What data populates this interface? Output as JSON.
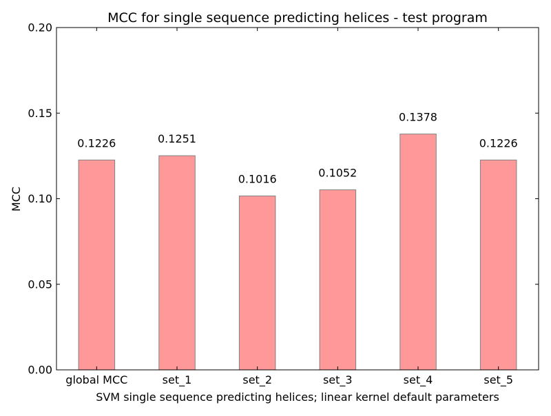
{
  "chart_data": {
    "type": "bar",
    "title": "MCC for single sequence predicting helices - test program",
    "xlabel": "SVM single sequence predicting helices; linear kernel default parameters",
    "ylabel": "MCC",
    "categories": [
      "global MCC",
      "set_1",
      "set_2",
      "set_3",
      "set_4",
      "set_5"
    ],
    "values": [
      0.1226,
      0.1251,
      0.1016,
      0.1052,
      0.1378,
      0.1226
    ],
    "value_labels": [
      "0.1226",
      "0.1251",
      "0.1016",
      "0.1052",
      "0.1378",
      "0.1226"
    ],
    "ylim": [
      0,
      0.2
    ],
    "yticks": [
      0.0,
      0.05,
      0.1,
      0.15,
      0.2
    ],
    "ytick_labels": [
      "0.00",
      "0.05",
      "0.10",
      "0.15",
      "0.20"
    ],
    "grid": false,
    "bar_color": "#ff9999",
    "bar_edge_color": "#808080"
  }
}
